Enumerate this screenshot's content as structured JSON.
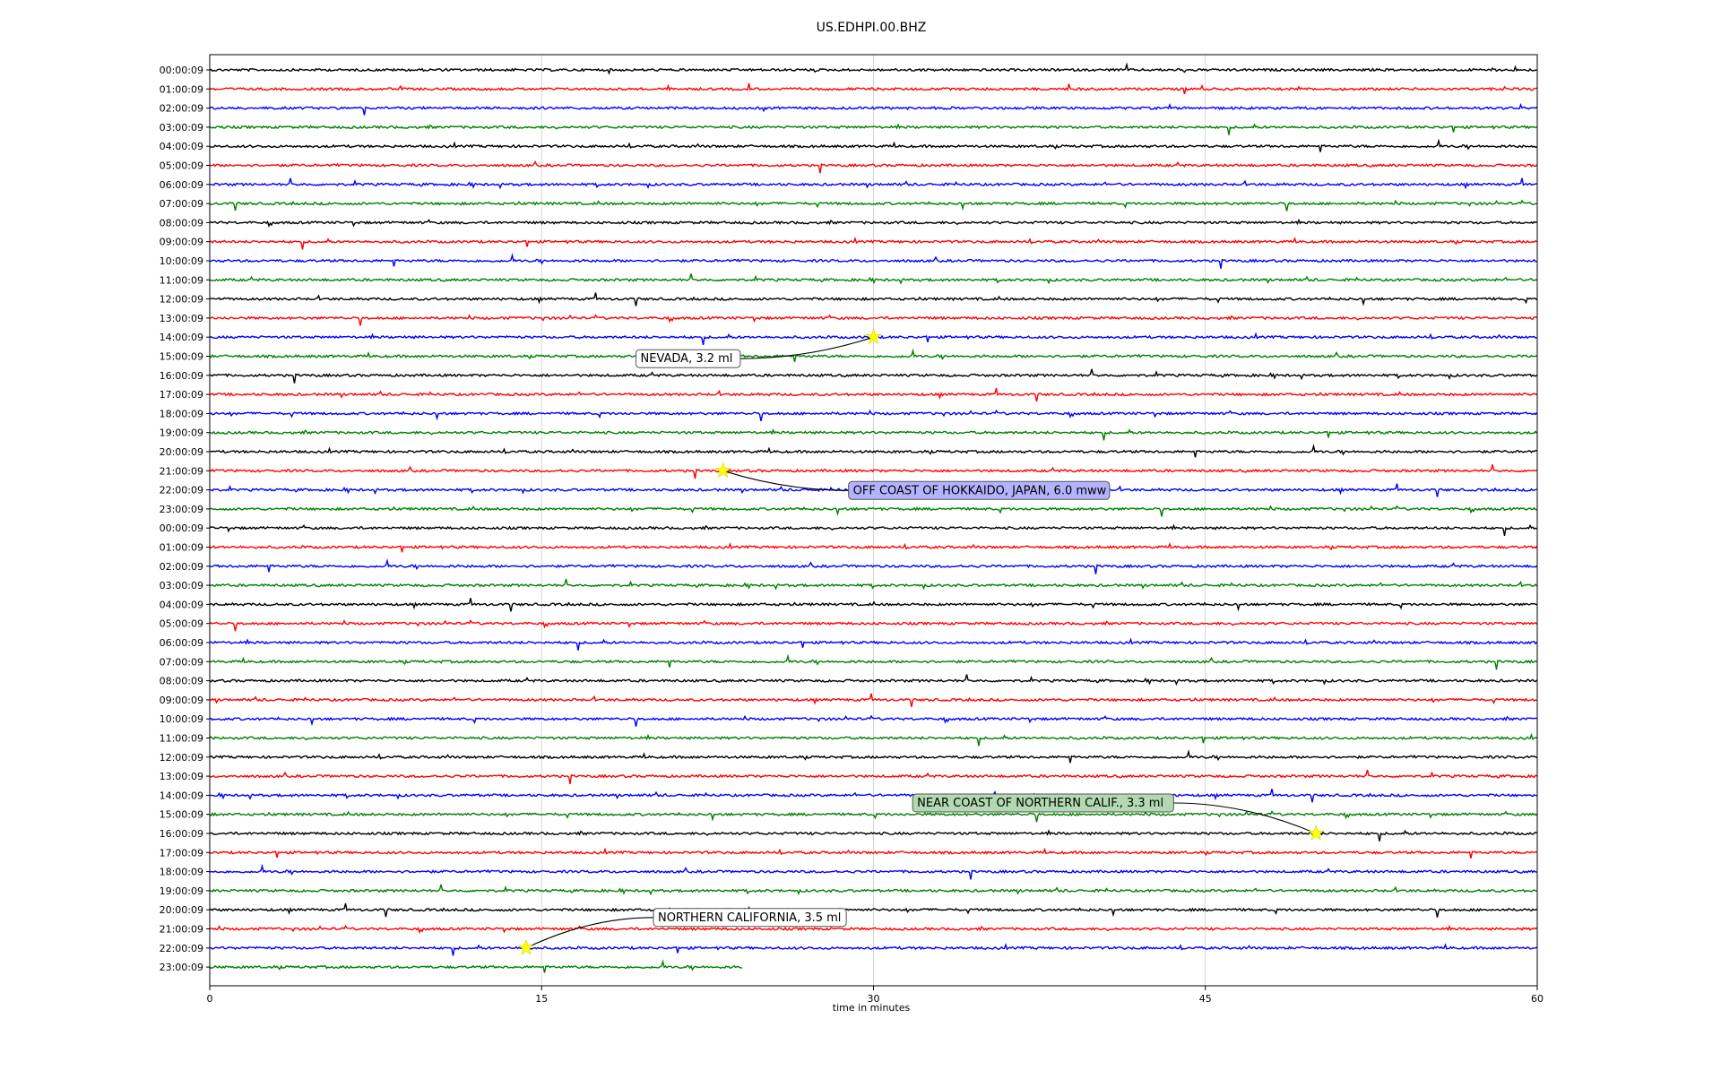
{
  "chart_data": {
    "type": "line",
    "title": "US.EDHPI.00.BHZ",
    "xlabel": "time in minutes",
    "ylabel": "",
    "xlim": [
      0,
      60
    ],
    "xticks": [
      "0",
      "15",
      "30",
      "45",
      "60"
    ],
    "grid": "vertical lines at 15-minute ticks",
    "trace_colors": [
      "#000000",
      "#ff0000",
      "#0000ff",
      "#008000"
    ],
    "row_labels": [
      "00:00:09",
      "01:00:09",
      "02:00:09",
      "03:00:09",
      "04:00:09",
      "05:00:09",
      "06:00:09",
      "07:00:09",
      "08:00:09",
      "09:00:09",
      "10:00:09",
      "11:00:09",
      "12:00:09",
      "13:00:09",
      "14:00:09",
      "15:00:09",
      "16:00:09",
      "17:00:09",
      "18:00:09",
      "19:00:09",
      "20:00:09",
      "21:00:09",
      "22:00:09",
      "23:00:09",
      "00:00:09",
      "01:00:09",
      "02:00:09",
      "03:00:09",
      "04:00:09",
      "05:00:09",
      "06:00:09",
      "07:00:09",
      "08:00:09",
      "09:00:09",
      "10:00:09",
      "11:00:09",
      "12:00:09",
      "13:00:09",
      "14:00:09",
      "15:00:09",
      "16:00:09",
      "17:00:09",
      "18:00:09",
      "19:00:09",
      "20:00:09",
      "21:00:09",
      "22:00:09",
      "23:00:09"
    ],
    "last_row_end_minute": 24.1,
    "events": [
      {
        "label": "NEVADA, 3.2 ml",
        "row": 14,
        "minute": 30.0,
        "box_color": "#ffffff"
      },
      {
        "label": "OFF COAST OF HOKKAIDO, JAPAN, 6.0 mww",
        "row": 21,
        "minute": 23.2,
        "box_color": "#b3b3ff"
      },
      {
        "label": "NEAR COAST OF NORTHERN CALIF., 3.3 ml",
        "row": 40,
        "minute": 50.0,
        "box_color": "#b3d9b3"
      },
      {
        "label": "NORTHERN CALIFORNIA, 3.5 ml",
        "row": 46,
        "minute": 14.3,
        "box_color": "#ffffff"
      }
    ]
  }
}
